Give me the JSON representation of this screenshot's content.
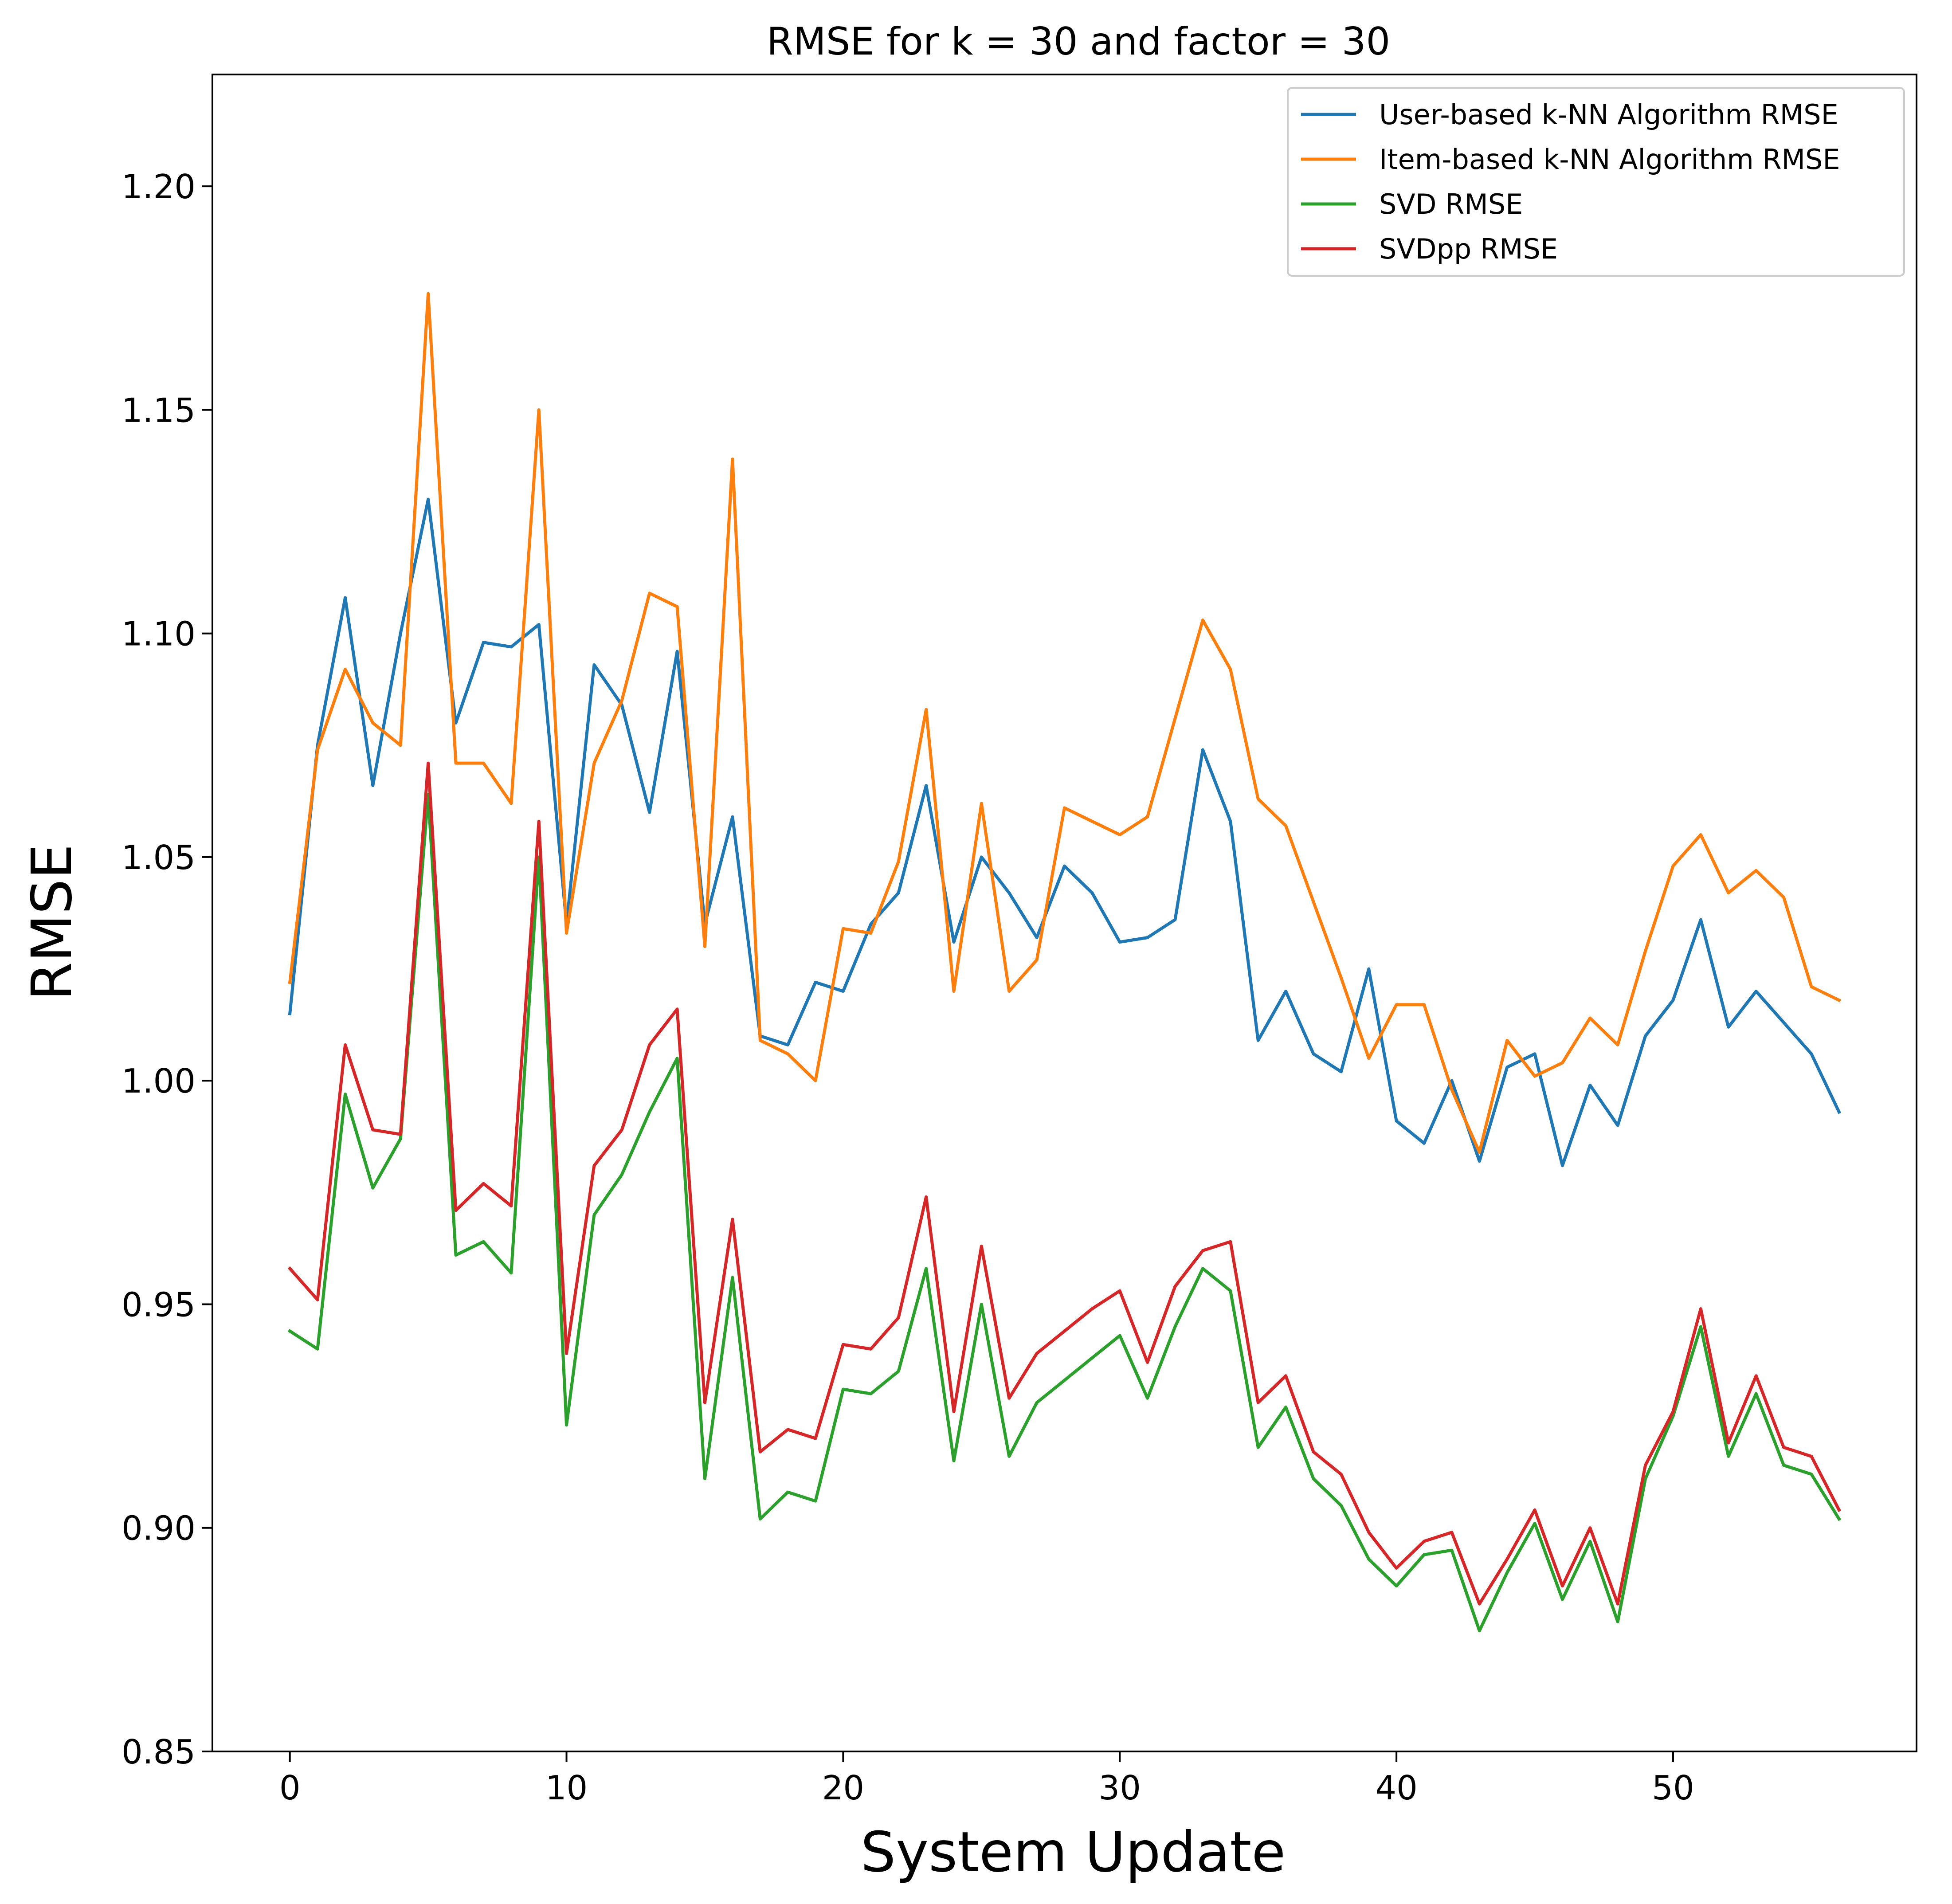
{
  "chart_data": {
    "type": "line",
    "title": "RMSE for k = 30 and factor = 30",
    "xlabel": "System Update",
    "ylabel": "RMSE",
    "xlim": [
      -2.8,
      58.8
    ],
    "ylim": [
      0.85,
      1.225
    ],
    "xticks": [
      0,
      10,
      20,
      30,
      40,
      50
    ],
    "xtick_labels": [
      "0",
      "10",
      "20",
      "30",
      "40",
      "50"
    ],
    "yticks": [
      0.85,
      0.9,
      0.95,
      1.0,
      1.05,
      1.1,
      1.15,
      1.2
    ],
    "ytick_labels": [
      "0.85",
      "0.90",
      "0.95",
      "1.00",
      "1.05",
      "1.10",
      "1.15",
      "1.20"
    ],
    "grid": false,
    "legend_position": "top-right",
    "x": [
      0,
      1,
      2,
      3,
      4,
      5,
      6,
      7,
      8,
      9,
      10,
      11,
      12,
      13,
      14,
      15,
      16,
      17,
      18,
      19,
      20,
      21,
      22,
      23,
      24,
      25,
      26,
      27,
      28,
      29,
      30,
      31,
      32,
      33,
      34,
      35,
      36,
      37,
      38,
      39,
      40,
      41,
      42,
      43,
      44,
      45,
      46,
      47,
      48,
      49,
      50,
      51,
      52,
      53,
      54,
      55,
      56
    ],
    "series": [
      {
        "name": "User-based k-NN Algorithm RMSE",
        "color": "#1f77b4",
        "values": [
          1.015,
          1.075,
          1.108,
          1.066,
          1.1,
          1.13,
          1.08,
          1.098,
          1.097,
          1.102,
          1.035,
          1.093,
          1.084,
          1.06,
          1.096,
          1.035,
          1.059,
          1.01,
          1.008,
          1.022,
          1.02,
          1.035,
          1.042,
          1.066,
          1.031,
          1.05,
          1.042,
          1.032,
          1.048,
          1.042,
          1.031,
          1.032,
          1.036,
          1.074,
          1.058,
          1.009,
          1.02,
          1.006,
          1.002,
          1.025,
          0.991,
          0.986,
          1.0,
          0.982,
          1.003,
          1.006,
          0.981,
          0.999,
          0.99,
          1.01,
          1.018,
          1.036,
          1.012,
          1.02,
          1.013,
          1.006,
          0.993
        ]
      },
      {
        "name": "Item-based k-NN Algorithm RMSE",
        "color": "#ff7f0e",
        "values": [
          1.022,
          1.074,
          1.092,
          1.08,
          1.075,
          1.176,
          1.071,
          1.071,
          1.062,
          1.15,
          1.033,
          1.071,
          1.085,
          1.109,
          1.106,
          1.03,
          1.139,
          1.009,
          1.006,
          1.0,
          1.034,
          1.033,
          1.049,
          1.083,
          1.02,
          1.062,
          1.02,
          1.027,
          1.061,
          1.058,
          1.055,
          1.059,
          1.081,
          1.103,
          1.092,
          1.063,
          1.057,
          1.04,
          1.023,
          1.005,
          1.017,
          1.017,
          0.998,
          0.984,
          1.009,
          1.001,
          1.004,
          1.014,
          1.008,
          1.029,
          1.048,
          1.055,
          1.042,
          1.047,
          1.041,
          1.021,
          1.018
        ]
      },
      {
        "name": "SVD RMSE",
        "color": "#2ca02c",
        "values": [
          0.944,
          0.94,
          0.997,
          0.976,
          0.987,
          1.064,
          0.961,
          0.964,
          0.957,
          1.05,
          0.923,
          0.97,
          0.979,
          0.993,
          1.005,
          0.911,
          0.956,
          0.902,
          0.908,
          0.906,
          0.931,
          0.93,
          0.935,
          0.958,
          0.915,
          0.95,
          0.916,
          0.928,
          0.933,
          0.938,
          0.943,
          0.929,
          0.945,
          0.958,
          0.953,
          0.918,
          0.927,
          0.911,
          0.905,
          0.893,
          0.887,
          0.894,
          0.895,
          0.877,
          0.89,
          0.901,
          0.884,
          0.897,
          0.879,
          0.911,
          0.925,
          0.945,
          0.916,
          0.93,
          0.914,
          0.912,
          0.902
        ]
      },
      {
        "name": "SVDpp RMSE",
        "color": "#d62728",
        "values": [
          0.958,
          0.951,
          1.008,
          0.989,
          0.988,
          1.071,
          0.971,
          0.977,
          0.972,
          1.058,
          0.939,
          0.981,
          0.989,
          1.008,
          1.016,
          0.928,
          0.969,
          0.917,
          0.922,
          0.92,
          0.941,
          0.94,
          0.947,
          0.974,
          0.926,
          0.963,
          0.929,
          0.939,
          0.944,
          0.949,
          0.953,
          0.937,
          0.954,
          0.962,
          0.964,
          0.928,
          0.934,
          0.917,
          0.912,
          0.899,
          0.891,
          0.897,
          0.899,
          0.883,
          0.893,
          0.904,
          0.887,
          0.9,
          0.883,
          0.914,
          0.926,
          0.949,
          0.919,
          0.934,
          0.918,
          0.916,
          0.904
        ]
      }
    ]
  }
}
